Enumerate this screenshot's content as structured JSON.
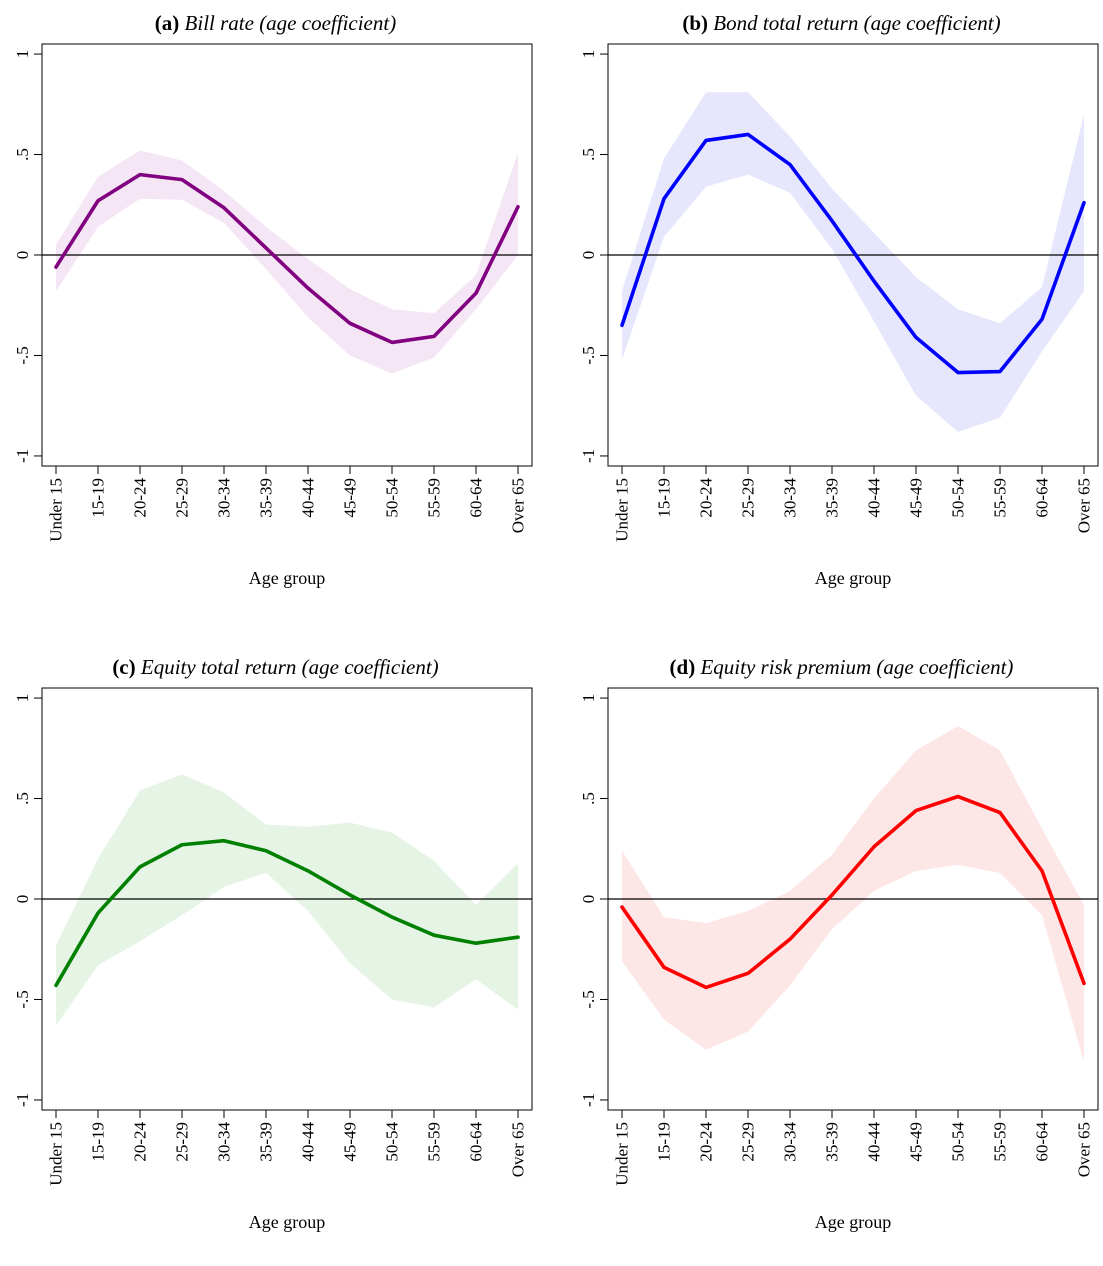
{
  "chart_data": [
    {
      "id": "a",
      "type": "line",
      "panel_label": "(a)",
      "title": "Bill rate (age coefficient)",
      "xlabel": "Age group",
      "ylabel": "",
      "categories": [
        "Under 15",
        "15-19",
        "20-24",
        "25-29",
        "30-34",
        "35-39",
        "40-44",
        "45-49",
        "50-54",
        "55-59",
        "60-64",
        "Over 65"
      ],
      "yticks": [
        -1,
        -0.5,
        0,
        0.5,
        1
      ],
      "ytick_labels": [
        "-1",
        "-.5",
        "0",
        ".5",
        "1"
      ],
      "ylim": [
        -1.05,
        1.05
      ],
      "grid": false,
      "legend": "none",
      "reference_line": 0,
      "color": "#800080",
      "band_color": "#f4e6f4",
      "series": [
        {
          "values": [
            -0.06,
            0.27,
            0.4,
            0.375,
            0.235,
            0.035,
            -0.165,
            -0.34,
            -0.435,
            -0.405,
            -0.19,
            0.24
          ],
          "lower": [
            -0.18,
            0.14,
            0.28,
            0.275,
            0.16,
            -0.07,
            -0.31,
            -0.5,
            -0.59,
            -0.51,
            -0.27,
            0.0
          ],
          "upper": [
            0.05,
            0.39,
            0.52,
            0.47,
            0.32,
            0.14,
            -0.02,
            -0.17,
            -0.27,
            -0.29,
            -0.1,
            0.51
          ]
        }
      ]
    },
    {
      "id": "b",
      "type": "line",
      "panel_label": "(b)",
      "title": "Bond total return (age coefficient)",
      "xlabel": "Age group",
      "ylabel": "",
      "categories": [
        "Under 15",
        "15-19",
        "20-24",
        "25-29",
        "30-34",
        "35-39",
        "40-44",
        "45-49",
        "50-54",
        "55-59",
        "60-64",
        "Over 65"
      ],
      "yticks": [
        -1,
        -0.5,
        0,
        0.5,
        1
      ],
      "ytick_labels": [
        "-1",
        "-.5",
        "0",
        ".5",
        "1"
      ],
      "ylim": [
        -1.05,
        1.05
      ],
      "grid": false,
      "legend": "none",
      "reference_line": 0,
      "color": "#0000ff",
      "band_color": "#e6e6fc",
      "series": [
        {
          "values": [
            -0.35,
            0.28,
            0.57,
            0.6,
            0.45,
            0.17,
            -0.13,
            -0.41,
            -0.585,
            -0.58,
            -0.32,
            0.26
          ],
          "lower": [
            -0.52,
            0.09,
            0.34,
            0.4,
            0.31,
            0.03,
            -0.33,
            -0.7,
            -0.88,
            -0.81,
            -0.48,
            -0.18
          ],
          "upper": [
            -0.18,
            0.48,
            0.81,
            0.81,
            0.59,
            0.33,
            0.11,
            -0.11,
            -0.27,
            -0.34,
            -0.16,
            0.7
          ]
        }
      ]
    },
    {
      "id": "c",
      "type": "line",
      "panel_label": "(c)",
      "title": "Equity total return (age coefficient)",
      "xlabel": "Age group",
      "ylabel": "",
      "categories": [
        "Under 15",
        "15-19",
        "20-24",
        "25-29",
        "30-34",
        "35-39",
        "40-44",
        "45-49",
        "50-54",
        "55-59",
        "60-64",
        "Over 65"
      ],
      "yticks": [
        -1,
        -0.5,
        0,
        0.5,
        1
      ],
      "ytick_labels": [
        "-1",
        "-.5",
        "0",
        ".5",
        "1"
      ],
      "ylim": [
        -1.05,
        1.05
      ],
      "grid": false,
      "legend": "none",
      "reference_line": 0,
      "color": "#008000",
      "band_color": "#e6f4e6",
      "series": [
        {
          "values": [
            -0.43,
            -0.07,
            0.16,
            0.27,
            0.29,
            0.24,
            0.14,
            0.02,
            -0.09,
            -0.18,
            -0.22,
            -0.19
          ],
          "lower": [
            -0.63,
            -0.33,
            -0.21,
            -0.08,
            0.06,
            0.13,
            -0.06,
            -0.32,
            -0.5,
            -0.54,
            -0.4,
            -0.55
          ],
          "upper": [
            -0.23,
            0.2,
            0.54,
            0.62,
            0.53,
            0.37,
            0.36,
            0.38,
            0.33,
            0.19,
            -0.03,
            0.18
          ]
        }
      ]
    },
    {
      "id": "d",
      "type": "line",
      "panel_label": "(d)",
      "title": "Equity risk premium (age coefficient)",
      "xlabel": "Age group",
      "ylabel": "",
      "categories": [
        "Under 15",
        "15-19",
        "20-24",
        "25-29",
        "30-34",
        "35-39",
        "40-44",
        "45-49",
        "50-54",
        "55-59",
        "60-64",
        "Over 65"
      ],
      "yticks": [
        -1,
        -0.5,
        0,
        0.5,
        1
      ],
      "ytick_labels": [
        "-1",
        "-.5",
        "0",
        ".5",
        "1"
      ],
      "ylim": [
        -1.05,
        1.05
      ],
      "grid": false,
      "legend": "none",
      "reference_line": 0,
      "color": "#ff0000",
      "band_color": "#fde6e6",
      "series": [
        {
          "values": [
            -0.04,
            -0.34,
            -0.44,
            -0.37,
            -0.2,
            0.02,
            0.26,
            0.44,
            0.51,
            0.43,
            0.14,
            -0.42
          ],
          "lower": [
            -0.31,
            -0.6,
            -0.75,
            -0.66,
            -0.43,
            -0.15,
            0.04,
            0.14,
            0.17,
            0.13,
            -0.08,
            -0.81
          ],
          "upper": [
            0.24,
            -0.09,
            -0.12,
            -0.06,
            0.04,
            0.22,
            0.5,
            0.74,
            0.86,
            0.74,
            0.35,
            -0.03
          ]
        }
      ]
    }
  ]
}
